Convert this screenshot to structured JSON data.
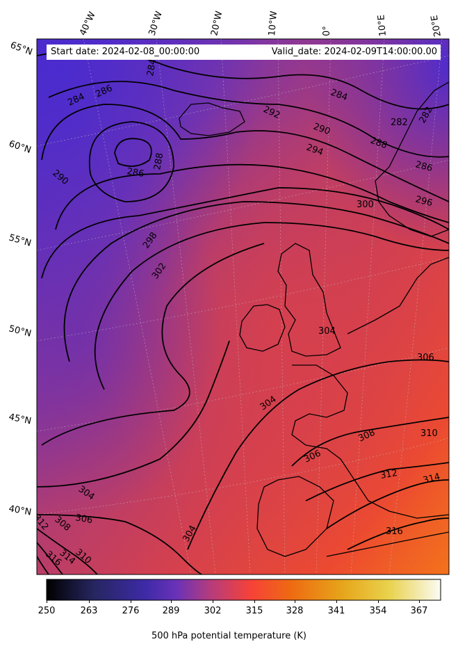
{
  "map": {
    "start_date": "Start date: 2024-02-08_00:00:00",
    "valid_date": "Valid_date: 2024-02-09T14:00:00.00",
    "lon_labels": [
      "40°W",
      "30°W",
      "20°W",
      "10°W",
      "0°",
      "10°E",
      "20°E"
    ],
    "lat_labels": [
      "65°N",
      "60°N",
      "55°N",
      "50°N",
      "45°N",
      "40°N"
    ],
    "contour_labels": [
      "284",
      "286",
      "284",
      "290",
      "286",
      "288",
      "292",
      "290",
      "294",
      "284",
      "282",
      "282",
      "288",
      "286",
      "296",
      "300",
      "298",
      "302",
      "304",
      "306",
      "304",
      "306",
      "308",
      "310",
      "312",
      "314",
      "316",
      "304",
      "306",
      "312",
      "308",
      "310",
      "314",
      "316",
      "304"
    ],
    "variable": "500 hPa potential temperature",
    "colormap": "CMRmap",
    "colors": {
      "low": "#4a2bc0",
      "mid": "#d43f4d",
      "high": "#f25a1e",
      "deep_purple": "#5030c8"
    }
  },
  "colorbar": {
    "title": "500 hPa potential temperature (K)",
    "ticks": [
      "250",
      "263",
      "276",
      "289",
      "302",
      "315",
      "328",
      "341",
      "354",
      "367"
    ],
    "range": [
      250,
      372
    ]
  }
}
